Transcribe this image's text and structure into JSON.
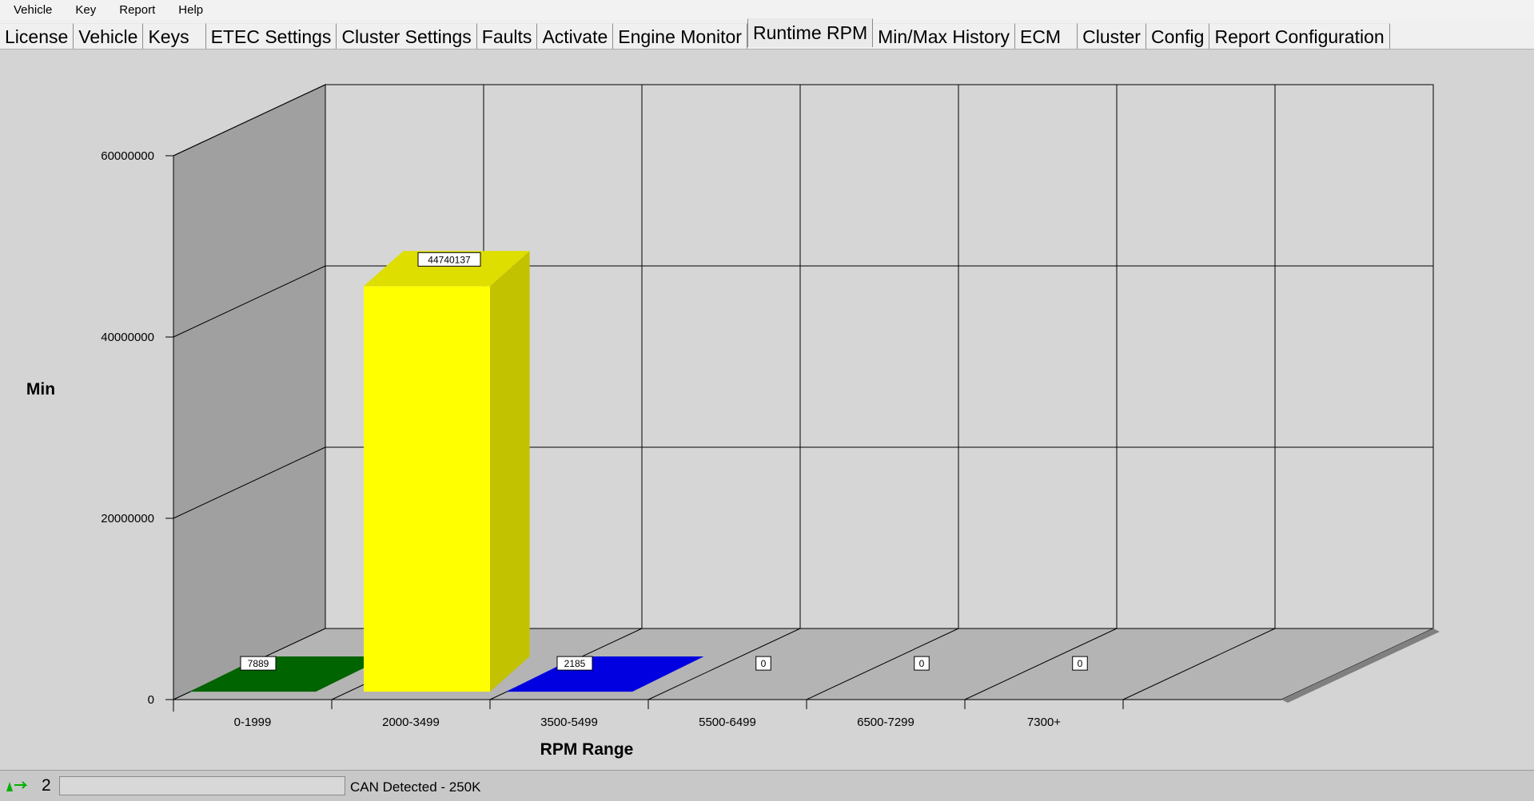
{
  "menu": [
    "Vehicle",
    "Key",
    "Report",
    "Help"
  ],
  "tabs": [
    {
      "label": "License",
      "active": false
    },
    {
      "label": "Vehicle",
      "active": false
    },
    {
      "label": "Keys",
      "active": false
    },
    {
      "label": "ETEC Settings",
      "active": false
    },
    {
      "label": "Cluster Settings",
      "active": false
    },
    {
      "label": "Faults",
      "active": false
    },
    {
      "label": "Activate",
      "active": false
    },
    {
      "label": "Engine Monitor",
      "active": false
    },
    {
      "label": "Runtime RPM",
      "active": true
    },
    {
      "label": "Min/Max History",
      "active": false
    },
    {
      "label": "ECM",
      "active": false
    },
    {
      "label": "Cluster",
      "active": false
    },
    {
      "label": "Config",
      "active": false
    },
    {
      "label": "Report Configuration",
      "active": false
    }
  ],
  "chart_data": {
    "type": "bar",
    "categories": [
      "0-1999",
      "2000-3499",
      "3500-5499",
      "5500-6499",
      "6500-7299",
      "7300+"
    ],
    "values": [
      7889,
      44740137,
      2185,
      0,
      0,
      0
    ],
    "data_labels": [
      "7889",
      "44740137",
      "2185",
      "0",
      "0",
      "0"
    ],
    "colors": [
      "#006400",
      "#ffff00",
      "#0000e0",
      "#808080",
      "#808080",
      "#808080"
    ],
    "ylabel": "Min",
    "xlabel": "RPM Range",
    "ylim": [
      0,
      60000000
    ],
    "yticks": [
      0,
      20000000,
      40000000,
      60000000
    ],
    "ytick_labels": [
      "0",
      "20000000",
      "40000000",
      "60000000"
    ],
    "grid": true
  },
  "status": {
    "count": "2",
    "message": "CAN Detected - 250K"
  }
}
